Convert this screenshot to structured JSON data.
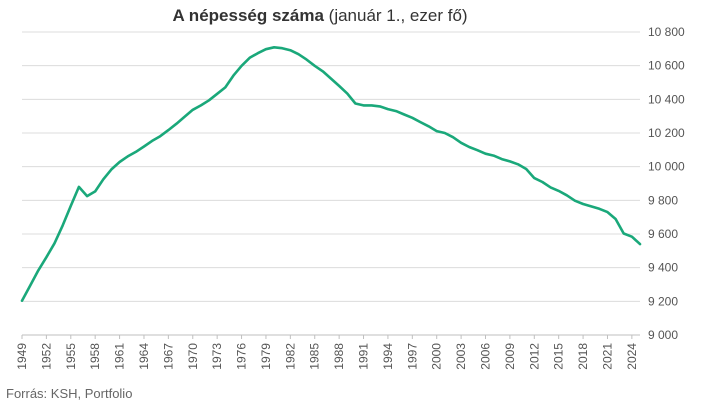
{
  "title_bold": "A népesség száma",
  "title_rest": " (január 1., ezer fő)",
  "source": "Forrás: KSH, Portfolio",
  "chart_data": {
    "type": "line",
    "title": "A népesség száma (január 1., ezer fő)",
    "xlabel": "",
    "ylabel": "",
    "ylim": [
      9000,
      10800
    ],
    "xlim": [
      1949,
      2025
    ],
    "yticks": [
      9000,
      9200,
      9400,
      9600,
      9800,
      10000,
      10200,
      10400,
      10600,
      10800
    ],
    "ytick_labels": [
      "9 000",
      "9 200",
      "9 400",
      "9 600",
      "9 800",
      "10 000",
      "10 200",
      "10 400",
      "10 600",
      "10 800"
    ],
    "xticks": [
      1949,
      1952,
      1955,
      1958,
      1961,
      1964,
      1967,
      1970,
      1973,
      1976,
      1979,
      1982,
      1985,
      1988,
      1991,
      1994,
      1997,
      2000,
      2003,
      2006,
      2009,
      2012,
      2015,
      2018,
      2021,
      2024
    ],
    "grid": "horizontal",
    "y_axis_side": "right",
    "line_color": "#1aa87a",
    "series": [
      {
        "x": [
          1949,
          1950,
          1951,
          1952,
          1953,
          1954,
          1955,
          1956,
          1957,
          1958,
          1959,
          1960,
          1961,
          1962,
          1963,
          1964,
          1965,
          1966,
          1967,
          1968,
          1969,
          1970,
          1971,
          1972,
          1973,
          1974,
          1975,
          1976,
          1977,
          1978,
          1979,
          1980,
          1981,
          1982,
          1983,
          1984,
          1985,
          1986,
          1987,
          1988,
          1989,
          1990,
          1991,
          1992,
          1993,
          1994,
          1995,
          1996,
          1997,
          1998,
          1999,
          2000,
          2001,
          2002,
          2003,
          2004,
          2005,
          2006,
          2007,
          2008,
          2009,
          2010,
          2011,
          2012,
          2013,
          2014,
          2015,
          2016,
          2017,
          2018,
          2019,
          2020,
          2021,
          2022,
          2023,
          2024,
          2025
        ],
        "values": [
          9204,
          9293,
          9384,
          9462,
          9545,
          9651,
          9767,
          9880,
          9825,
          9853,
          9925,
          9984,
          10028,
          10061,
          10088,
          10120,
          10153,
          10181,
          10217,
          10255,
          10296,
          10338,
          10364,
          10394,
          10433,
          10471,
          10541,
          10599,
          10647,
          10674,
          10698,
          10709,
          10704,
          10692,
          10668,
          10636,
          10599,
          10566,
          10523,
          10480,
          10434,
          10375,
          10364,
          10364,
          10358,
          10342,
          10330,
          10310,
          10290,
          10265,
          10240,
          10211,
          10200,
          10175,
          10142,
          10117,
          10098,
          10077,
          10066,
          10045,
          10031,
          10014,
          9986,
          9932,
          9909,
          9877,
          9856,
          9830,
          9798,
          9778,
          9764,
          9750,
          9730,
          9689,
          9603,
          9584,
          9540
        ]
      }
    ]
  }
}
